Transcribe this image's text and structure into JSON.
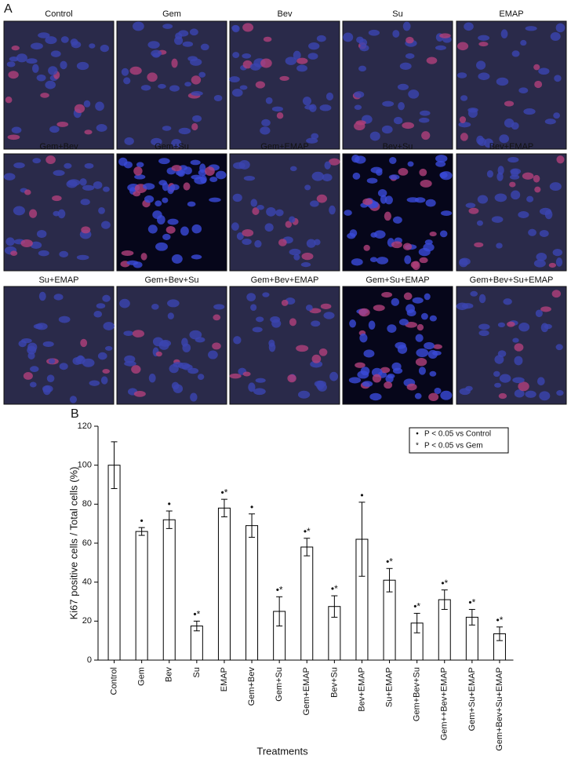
{
  "panel_a": {
    "label": "A",
    "images": [
      "Control",
      "Gem",
      "Bev",
      "Su",
      "EMAP",
      "Gem+Bev",
      "Gem+Su",
      "Gem+EMAP",
      "Bev+Su",
      "Bev+EMAP",
      "Su+EMAP",
      "Gem+Bev+Su",
      "Gem+Bev+EMAP",
      "Gem+Su+EMAP",
      "Gem+Bev+Su+EMAP"
    ]
  },
  "chart_data": {
    "type": "bar",
    "panel_label": "B",
    "x_label": "Treatments",
    "y_label": "Ki67 positive cells / Total cells (%)",
    "categories": [
      "Control",
      "Gem",
      "Bev",
      "Su",
      "EMAP",
      "Gem+Bev",
      "Gem+Su",
      "Gem+EMAP",
      "Bev+Su",
      "Bev+EMAP",
      "Su+EMAP",
      "Gem+Bev+Su",
      "Gem++Bev+EMAP",
      "Gem+Su+EMAP",
      "Gem+Bev+Su+EMAP"
    ],
    "values": [
      100,
      66,
      72,
      17.5,
      78,
      69,
      25,
      58,
      27.5,
      62,
      41,
      19,
      31,
      22,
      13.5
    ],
    "errors": [
      12,
      2,
      4.5,
      2.5,
      4.5,
      6,
      7.5,
      4.5,
      5.5,
      19,
      6,
      5,
      5,
      4,
      3.5
    ],
    "significance": [
      null,
      "•",
      "•",
      "•*",
      "•*",
      "•",
      "•*",
      "•*",
      "•*",
      "•",
      "•*",
      "•*",
      "•*",
      "•*",
      "•*"
    ],
    "legend": [
      {
        "symbol": "•",
        "label": "P < 0.05 vs Control"
      },
      {
        "symbol": "*",
        "label": "P < 0.05 vs Gem"
      }
    ],
    "color": "#ffffff",
    "ylim": [
      0,
      120
    ],
    "yticks": [
      0,
      20,
      40,
      60,
      80,
      100,
      120
    ],
    "grid": false
  }
}
